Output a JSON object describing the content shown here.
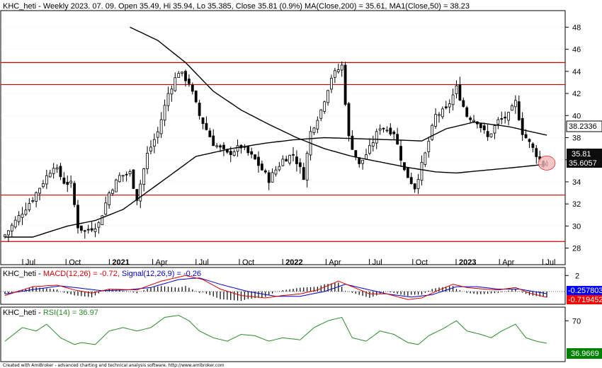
{
  "chart_data": {
    "type": "candlestick",
    "price_header": {
      "ticker": "KHC_heti",
      "details": " - Weekly 2023. 07. 09. Open 35.49, Hi 35.94, Lo 35.385, Close 35.81 (0.9%) ",
      "ma200_text": "MA(Close,200) = 35.61, ",
      "ma50_text": "MA1(Close,50) = 38.23"
    },
    "macd_header": {
      "ticker": "KHC_heti",
      "dash": " - ",
      "macd_text": "MACD(12,26) = -0.72, ",
      "signal_text": "Signal(12,26,9) = -0.26"
    },
    "rsi_header": {
      "ticker": "KHC_heti",
      "dash": " - ",
      "rsi_text": "RSI(14) = 36.97"
    },
    "footer": "Created with AmiBroker - advanced charting and technical analysis software. http://www.amibroker.com",
    "x_labels": [
      "Jul",
      "Oct",
      "2021",
      "Apr",
      "Jul",
      "Oct",
      "2022",
      "Apr",
      "Jul",
      "Oct",
      "2023",
      "Apr",
      "Jul"
    ],
    "x_label_bold": [
      false,
      false,
      true,
      false,
      false,
      false,
      true,
      false,
      false,
      false,
      true,
      false,
      false
    ],
    "price_axis": {
      "ylim": [
        26.5,
        49.5
      ],
      "ticks": [
        28,
        30,
        32,
        34,
        36,
        38,
        40,
        42,
        44,
        46,
        48
      ]
    },
    "macd_axis": {
      "ylim": [
        -1.6,
        3.0
      ],
      "ticks": [
        2
      ]
    },
    "rsi_axis": {
      "ylim": [
        10,
        90
      ],
      "ticks": [
        70
      ]
    },
    "horizontal_lines": [
      44.8,
      42.8,
      32.8,
      28.6
    ],
    "weeks": 157,
    "close_anchors": [
      [
        0,
        29.2
      ],
      [
        8,
        32.5
      ],
      [
        14,
        35.5
      ],
      [
        17,
        34.0
      ],
      [
        19,
        33.8
      ],
      [
        21,
        30.0
      ],
      [
        23,
        29.5
      ],
      [
        27,
        30.2
      ],
      [
        30,
        33.0
      ],
      [
        33,
        34.5
      ],
      [
        36,
        34.8
      ],
      [
        38,
        32.5
      ],
      [
        41,
        36.5
      ],
      [
        44,
        38.5
      ],
      [
        47,
        42.0
      ],
      [
        50,
        44.0
      ],
      [
        53,
        43.0
      ],
      [
        56,
        40.0
      ],
      [
        60,
        37.5
      ],
      [
        64,
        36.5
      ],
      [
        68,
        37.2
      ],
      [
        72,
        36.0
      ],
      [
        76,
        34.2
      ],
      [
        80,
        36.0
      ],
      [
        83,
        36.5
      ],
      [
        86,
        34.5
      ],
      [
        88,
        38.5
      ],
      [
        91,
        40.5
      ],
      [
        94,
        43.5
      ],
      [
        97,
        44.5
      ],
      [
        99,
        38.0
      ],
      [
        102,
        35.5
      ],
      [
        105,
        37.0
      ],
      [
        108,
        39.0
      ],
      [
        112,
        38.5
      ],
      [
        115,
        35.0
      ],
      [
        118,
        33.5
      ],
      [
        121,
        36.5
      ],
      [
        124,
        40.0
      ],
      [
        127,
        40.5
      ],
      [
        130,
        42.5
      ],
      [
        133,
        40.0
      ],
      [
        136,
        39.5
      ],
      [
        139,
        38.0
      ],
      [
        142,
        39.5
      ],
      [
        145,
        40.0
      ],
      [
        147,
        41.2
      ],
      [
        149,
        38.5
      ],
      [
        151,
        37.5
      ],
      [
        153,
        36.5
      ],
      [
        155,
        35.5
      ],
      [
        156,
        35.81
      ]
    ],
    "ma50_anchors": [
      [
        0,
        29.0
      ],
      [
        8,
        29.0
      ],
      [
        18,
        30.0
      ],
      [
        26,
        30.5
      ],
      [
        34,
        31.5
      ],
      [
        45,
        34.0
      ],
      [
        55,
        36.3
      ],
      [
        65,
        37.0
      ],
      [
        75,
        37.5
      ],
      [
        83,
        37.8
      ],
      [
        92,
        38.0
      ],
      [
        102,
        37.9
      ],
      [
        112,
        37.8
      ],
      [
        120,
        37.7
      ],
      [
        127,
        38.8
      ],
      [
        135,
        39.4
      ],
      [
        145,
        39.0
      ],
      [
        152,
        38.5
      ],
      [
        156,
        38.23
      ]
    ],
    "ma200_anchors": [
      [
        36,
        48.0
      ],
      [
        44,
        46.8
      ],
      [
        52,
        44.8
      ],
      [
        60,
        42.2
      ],
      [
        68,
        40.5
      ],
      [
        76,
        39.2
      ],
      [
        84,
        38.0
      ],
      [
        92,
        37.0
      ],
      [
        100,
        36.3
      ],
      [
        108,
        35.8
      ],
      [
        116,
        35.3
      ],
      [
        124,
        34.9
      ],
      [
        130,
        34.8
      ],
      [
        140,
        35.1
      ],
      [
        150,
        35.4
      ],
      [
        156,
        35.61
      ]
    ],
    "macd_anchors": [
      [
        0,
        -0.5
      ],
      [
        8,
        0.6
      ],
      [
        15,
        0.8
      ],
      [
        20,
        0.2
      ],
      [
        25,
        -0.2
      ],
      [
        30,
        0.3
      ],
      [
        38,
        0.2
      ],
      [
        45,
        1.3
      ],
      [
        52,
        2.0
      ],
      [
        57,
        1.5
      ],
      [
        62,
        0.3
      ],
      [
        68,
        -0.5
      ],
      [
        75,
        -0.8
      ],
      [
        80,
        -0.5
      ],
      [
        85,
        -0.3
      ],
      [
        90,
        0.2
      ],
      [
        96,
        1.3
      ],
      [
        100,
        0.6
      ],
      [
        105,
        -0.3
      ],
      [
        110,
        -0.3
      ],
      [
        116,
        -1.0
      ],
      [
        120,
        -0.8
      ],
      [
        125,
        0.2
      ],
      [
        129,
        0.9
      ],
      [
        133,
        0.5
      ],
      [
        138,
        0.3
      ],
      [
        142,
        0.2
      ],
      [
        147,
        0.5
      ],
      [
        151,
        -0.2
      ],
      [
        156,
        -0.72
      ]
    ],
    "signal_anchors": [
      [
        0,
        -0.3
      ],
      [
        9,
        0.3
      ],
      [
        16,
        0.7
      ],
      [
        22,
        0.4
      ],
      [
        28,
        0.1
      ],
      [
        35,
        0.2
      ],
      [
        42,
        0.5
      ],
      [
        50,
        1.5
      ],
      [
        56,
        1.7
      ],
      [
        62,
        0.9
      ],
      [
        70,
        0.0
      ],
      [
        78,
        -0.6
      ],
      [
        85,
        -0.6
      ],
      [
        92,
        0.0
      ],
      [
        98,
        0.9
      ],
      [
        104,
        0.3
      ],
      [
        110,
        -0.3
      ],
      [
        117,
        -0.7
      ],
      [
        123,
        -0.4
      ],
      [
        130,
        0.6
      ],
      [
        136,
        0.6
      ],
      [
        142,
        0.3
      ],
      [
        148,
        0.3
      ],
      [
        156,
        -0.26
      ]
    ],
    "rsi_anchors": [
      [
        0,
        40
      ],
      [
        5,
        60
      ],
      [
        9,
        55
      ],
      [
        12,
        65
      ],
      [
        16,
        45
      ],
      [
        20,
        35
      ],
      [
        22,
        38
      ],
      [
        26,
        35
      ],
      [
        30,
        55
      ],
      [
        34,
        60
      ],
      [
        38,
        55
      ],
      [
        42,
        60
      ],
      [
        46,
        75
      ],
      [
        50,
        78
      ],
      [
        53,
        70
      ],
      [
        56,
        55
      ],
      [
        60,
        45
      ],
      [
        64,
        40
      ],
      [
        68,
        50
      ],
      [
        72,
        48
      ],
      [
        76,
        40
      ],
      [
        80,
        45
      ],
      [
        85,
        42
      ],
      [
        89,
        60
      ],
      [
        93,
        70
      ],
      [
        97,
        75
      ],
      [
        100,
        45
      ],
      [
        104,
        40
      ],
      [
        108,
        55
      ],
      [
        112,
        50
      ],
      [
        116,
        38
      ],
      [
        119,
        35
      ],
      [
        122,
        48
      ],
      [
        126,
        58
      ],
      [
        130,
        70
      ],
      [
        133,
        55
      ],
      [
        137,
        50
      ],
      [
        140,
        45
      ],
      [
        143,
        55
      ],
      [
        147,
        65
      ],
      [
        150,
        45
      ],
      [
        153,
        40
      ],
      [
        156,
        36.97
      ]
    ],
    "value_tags": {
      "ma50": "38.2336",
      "close": "35.81",
      "ma200": "35.6057",
      "signal": "-0.257803",
      "macd": "-0.719452",
      "rsi": "36.9669"
    },
    "colors": {
      "candle": "#000000",
      "horizontal_line": "#d40000",
      "ma_line": "#000000",
      "macd_line": "#d40000",
      "signal_line": "#0000c8",
      "rsi_line": "#2a8a2a",
      "tag_ma200_bg": "#0d0d0d",
      "tag_close_bg": "#0d0d0d",
      "tag_ma50_bg": "#ffffff",
      "tag_signal_bg": "#0000ff",
      "tag_macd_bg": "#ff0000",
      "tag_rsi_bg": "#008000",
      "last_marker_fill": "#f4b8b8"
    }
  }
}
